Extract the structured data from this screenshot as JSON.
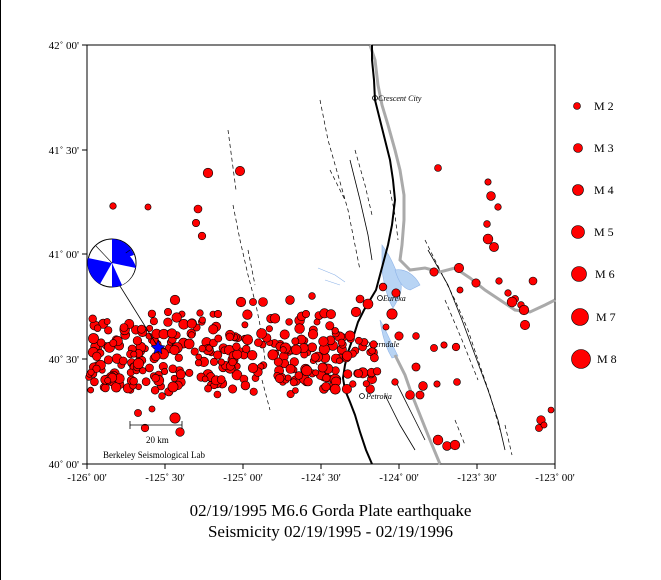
{
  "map": {
    "lat_ticks": [
      "42˚ 00'",
      "41˚ 30'",
      "41˚ 00'",
      "40˚ 30'",
      "40˚ 00'"
    ],
    "lon_ticks": [
      "-126˚ 00'",
      "-125˚ 30'",
      "-125˚ 00'",
      "-124˚ 30'",
      "-124˚ 00'",
      "-123˚ 30'",
      "-123˚ 00'"
    ],
    "towns": [
      {
        "name": "Crescent City"
      },
      {
        "name": "Eureka"
      },
      {
        "name": "Ferndale"
      },
      {
        "name": "Petrolia"
      }
    ],
    "scale_bar": "20 km",
    "credit": "Berkeley Seismological Lab",
    "colors": {
      "event": "#ff0000",
      "coast": "#000000",
      "border": "#aaaaaa",
      "water": "#a8c8f0",
      "mainshock": "#0000ff"
    },
    "mainshock": {
      "lon": -125.45,
      "lat": 40.55,
      "magnitude": 6.6,
      "symbol": "beachball"
    }
  },
  "legend": {
    "items": [
      {
        "label": "M 2"
      },
      {
        "label": "M 3"
      },
      {
        "label": "M 4"
      },
      {
        "label": "M 5"
      },
      {
        "label": "M 6"
      },
      {
        "label": "M 7"
      },
      {
        "label": "M 8"
      }
    ]
  },
  "caption": {
    "line1": "02/19/1995 M6.6 Gorda Plate earthquake",
    "line2": "Seismicity 02/19/1995 - 02/19/1996"
  }
}
